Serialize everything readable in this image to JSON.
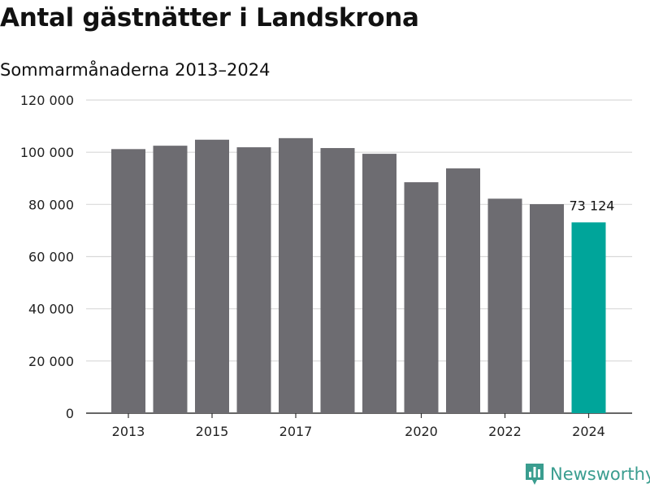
{
  "title": "Antal gästnätter i Landskrona",
  "subtitle": "Sommarmånaderna 2013–2024",
  "brand": {
    "name": "Newsworthy",
    "icon": "bar-chart-logo-icon",
    "color": "#3a9d8f"
  },
  "chart_data": {
    "type": "bar",
    "x": [
      2013,
      2014,
      2015,
      2016,
      2017,
      2018,
      2019,
      2020,
      2021,
      2022,
      2023,
      2024
    ],
    "values": [
      101200,
      102500,
      104800,
      101900,
      105400,
      101600,
      99400,
      88500,
      93800,
      82200,
      80100,
      73124
    ],
    "x_tick_labels": [
      "2013",
      "2015",
      "2017",
      "2020",
      "2022",
      "2024"
    ],
    "y_tick_labels": [
      "0",
      "20 000",
      "40 000",
      "60 000",
      "80 000",
      "100 000",
      "120 000"
    ],
    "ylim": [
      0,
      120000
    ],
    "y_ticks": [
      0,
      20000,
      40000,
      60000,
      80000,
      100000,
      120000
    ],
    "highlight_label": "73 124",
    "highlight_index": 11,
    "colors": {
      "bar": "#6d6c71",
      "highlight": "#00a59a",
      "grid": "#d9d9d9",
      "axis": "#333333"
    },
    "grid": true,
    "xlabel": "",
    "ylabel": ""
  }
}
